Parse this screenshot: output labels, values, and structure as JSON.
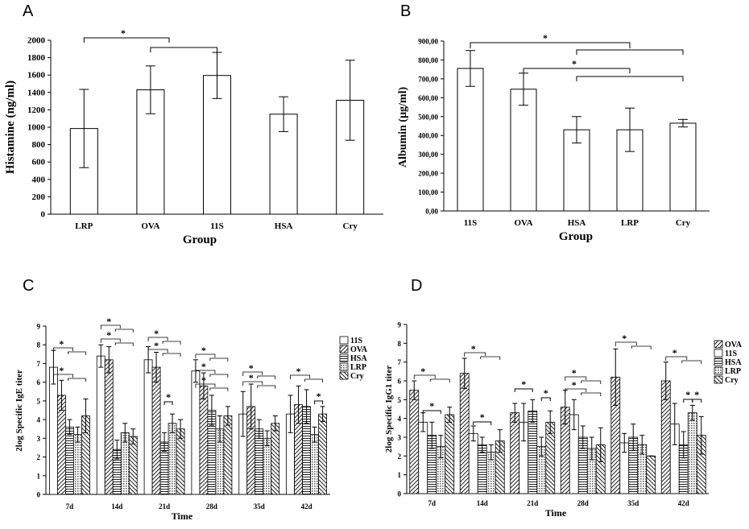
{
  "chart_data": [
    {
      "panel": "A",
      "type": "bar",
      "categories": [
        "LRP",
        "OVA",
        "11S",
        "HSA",
        "Cry"
      ],
      "values": [
        985,
        1430,
        1595,
        1150,
        1310
      ],
      "errors": [
        450,
        275,
        265,
        200,
        460
      ],
      "xlabel": "Group",
      "ylabel": "Histamine (ng/ml)",
      "ylim": [
        0,
        2000
      ],
      "yticks": [
        "0",
        "200",
        "400",
        "600",
        "800",
        "1000",
        "1200",
        "1400",
        "1600",
        "1800",
        "2000"
      ],
      "significance": [
        {
          "groups": [
            "LRP",
            "OVA",
            "11S"
          ],
          "label": "*"
        }
      ]
    },
    {
      "panel": "B",
      "type": "bar",
      "categories": [
        "11S",
        "OVA",
        "HSA",
        "LRP",
        "Cry"
      ],
      "values": [
        755,
        645,
        430,
        430,
        465
      ],
      "errors": [
        95,
        85,
        70,
        115,
        20
      ],
      "xlabel": "Group",
      "ylabel": "Albumin (µg/ml)",
      "ylim": [
        0,
        900
      ],
      "yticks": [
        "0,00",
        "100,00",
        "200,00",
        "300,00",
        "400,00",
        "500,00",
        "600,00",
        "700,00",
        "800,00",
        "900,00"
      ],
      "significance": [
        {
          "groups": [
            "11S",
            "HSA",
            "LRP",
            "Cry"
          ],
          "label": "*"
        },
        {
          "groups": [
            "OVA",
            "HSA",
            "LRP",
            "Cry"
          ],
          "label": "*"
        }
      ]
    },
    {
      "panel": "C",
      "type": "bar",
      "categories": [
        "7d",
        "14d",
        "21d",
        "28d",
        "35d",
        "42d"
      ],
      "series": [
        {
          "name": "11S",
          "values": [
            6.8,
            7.4,
            7.2,
            6.6,
            4.3,
            4.3
          ],
          "errors": [
            0.9,
            0.6,
            0.7,
            0.6,
            1.2,
            1.0
          ]
        },
        {
          "name": "OVA",
          "values": [
            5.3,
            7.2,
            6.8,
            5.8,
            4.7,
            4.8
          ],
          "errors": [
            0.8,
            0.7,
            0.8,
            0.7,
            1.2,
            1.0
          ]
        },
        {
          "name": "HSA",
          "values": [
            3.6,
            2.4,
            2.8,
            4.5,
            3.5,
            4.7
          ],
          "errors": [
            0.4,
            0.5,
            0.5,
            0.8,
            0.5,
            0.9
          ]
        },
        {
          "name": "LRP",
          "values": [
            3.2,
            3.3,
            3.8,
            3.5,
            3.0,
            3.2
          ],
          "errors": [
            0.4,
            0.5,
            0.5,
            0.7,
            0.4,
            0.4
          ]
        },
        {
          "name": "Cry",
          "values": [
            4.2,
            3.1,
            3.5,
            4.2,
            3.8,
            4.3
          ],
          "errors": [
            0.9,
            0.4,
            0.5,
            0.5,
            0.4,
            0.4
          ]
        }
      ],
      "xlabel": "Time",
      "ylabel": "2log Specific IgE titer",
      "ylim": [
        0,
        9
      ],
      "yticks": [
        "0",
        "1",
        "2",
        "3",
        "4",
        "5",
        "6",
        "7",
        "8",
        "9"
      ]
    },
    {
      "panel": "D",
      "type": "bar",
      "categories": [
        "7d",
        "14d",
        "21d",
        "28d",
        "35d",
        "42d"
      ],
      "series": [
        {
          "name": "OVA",
          "values": [
            5.5,
            6.4,
            4.3,
            4.6,
            6.2,
            6.0
          ],
          "errors": [
            0.5,
            0.8,
            0.5,
            0.9,
            1.5,
            1.0
          ]
        },
        {
          "name": "11S",
          "values": [
            3.8,
            3.2,
            3.8,
            4.2,
            2.7,
            3.7
          ],
          "errors": [
            0.5,
            0.4,
            1.0,
            0.8,
            0.5,
            1.1
          ]
        },
        {
          "name": "HSA",
          "values": [
            3.1,
            2.6,
            4.4,
            3.0,
            3.0,
            2.6
          ],
          "errors": [
            0.7,
            0.4,
            0.6,
            0.6,
            0.7,
            0.7
          ]
        },
        {
          "name": "LRP",
          "values": [
            2.5,
            2.2,
            2.5,
            2.4,
            2.6,
            4.3
          ],
          "errors": [
            0.6,
            0.4,
            0.5,
            0.6,
            0.5,
            0.4
          ]
        },
        {
          "name": "Cry",
          "values": [
            4.2,
            2.8,
            3.8,
            2.6,
            2.0,
            3.1
          ],
          "errors": [
            0.4,
            0.6,
            0.6,
            0.9,
            0.0,
            1.0
          ]
        }
      ],
      "xlabel": "Time",
      "ylabel": "2log Specific IgG1 titer",
      "ylim": [
        0,
        9
      ],
      "yticks": [
        "0",
        "1",
        "2",
        "3",
        "4",
        "5",
        "6",
        "7",
        "8",
        "9"
      ]
    }
  ],
  "panel_labels": {
    "A": "A",
    "B": "B",
    "C": "C",
    "D": "D"
  },
  "sig_mark": "*"
}
